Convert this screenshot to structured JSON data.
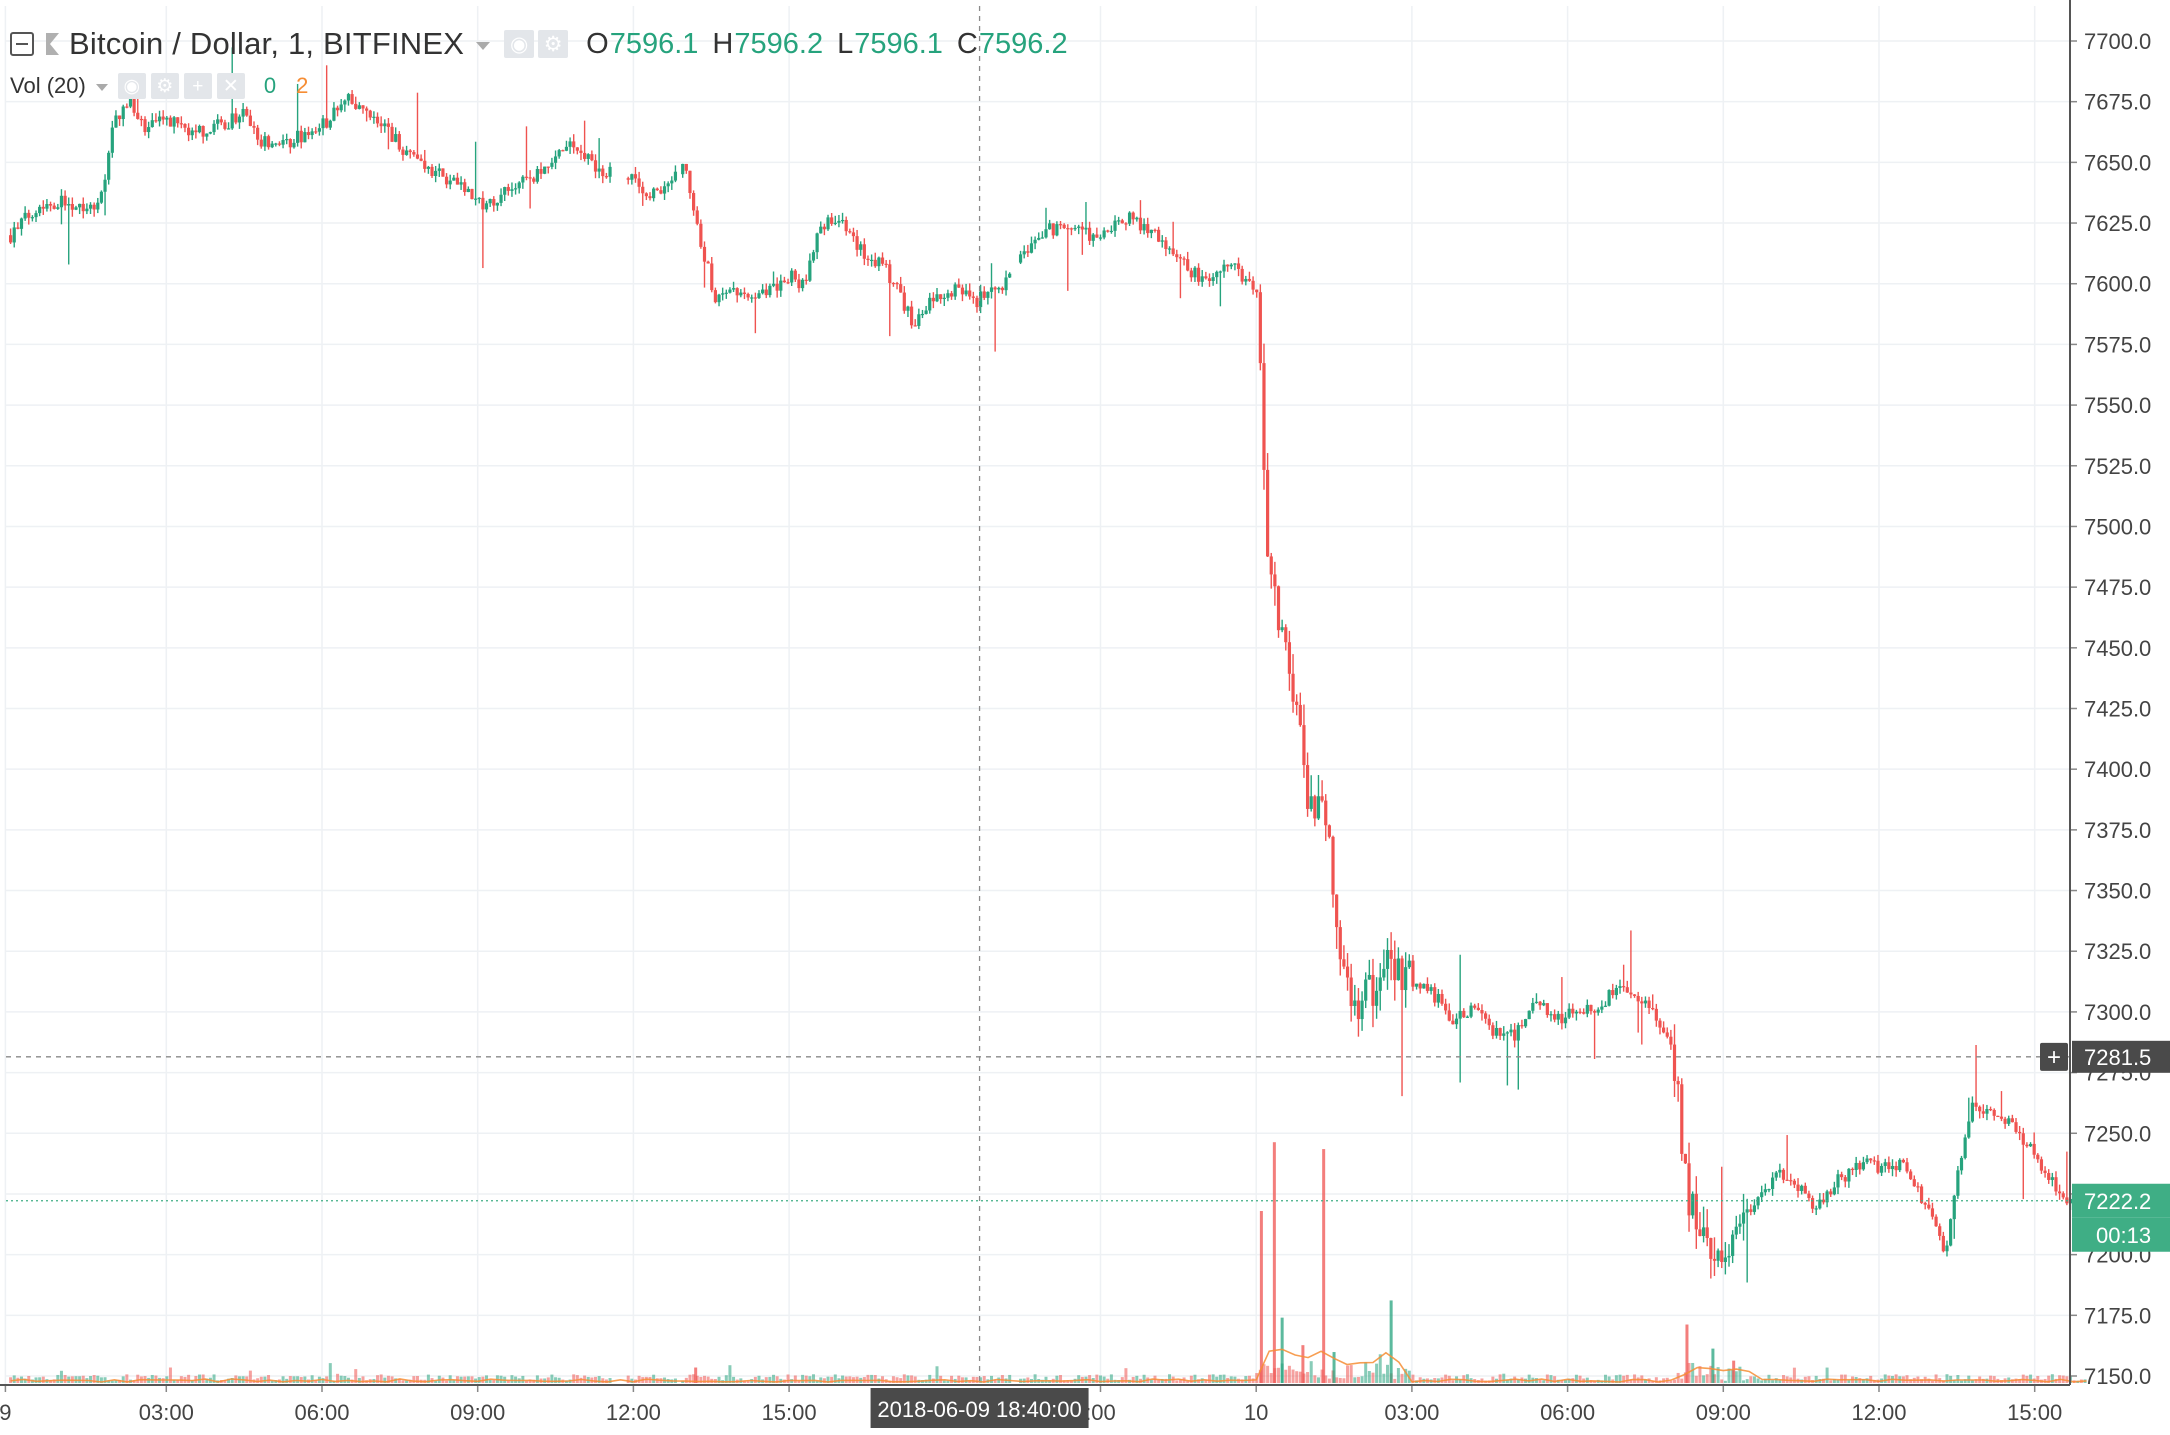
{
  "header": {
    "symbol_title": "Bitcoin / Dollar, 1, BITFINEX",
    "ohlc": [
      {
        "key": "O",
        "value": "7596.1"
      },
      {
        "key": "H",
        "value": "7596.2"
      },
      {
        "key": "L",
        "value": "7596.1"
      },
      {
        "key": "C",
        "value": "7596.2"
      }
    ],
    "volume_indicator": {
      "title": "Vol (20)",
      "up_value": "0",
      "ma_value": "2"
    }
  },
  "price_axis": {
    "ticks": [
      "7700.0",
      "7675.0",
      "7650.0",
      "7625.0",
      "7600.0",
      "7575.0",
      "7550.0",
      "7525.0",
      "7500.0",
      "7475.0",
      "7450.0",
      "7425.0",
      "7400.0",
      "7375.0",
      "7350.0",
      "7325.0",
      "7300.0",
      "7275.0",
      "7250.0",
      "7225.0",
      "7200.0",
      "7175.0",
      "7150.0"
    ],
    "crosshair_label": "7281.5",
    "crosshair_plus": "+",
    "last_price_label": "7222.2",
    "countdown_label": "00:13"
  },
  "time_axis": {
    "ticks": [
      {
        "label": "9",
        "hours": -0.1
      },
      {
        "label": "03:00",
        "hours": 3
      },
      {
        "label": "06:00",
        "hours": 6
      },
      {
        "label": "09:00",
        "hours": 9
      },
      {
        "label": "12:00",
        "hours": 12
      },
      {
        "label": "15:00",
        "hours": 15
      },
      {
        "label": ":00",
        "hours": 21
      },
      {
        "label": "10",
        "hours": 24
      },
      {
        "label": "03:00",
        "hours": 27
      },
      {
        "label": "06:00",
        "hours": 30
      },
      {
        "label": "09:00",
        "hours": 33
      },
      {
        "label": "12:00",
        "hours": 36
      },
      {
        "label": "15:00",
        "hours": 39
      }
    ],
    "crosshair_label": "2018-06-09 18:40:00"
  },
  "colors": {
    "up": "#26a37d",
    "down": "#ef5350",
    "grid": "#eef1f4",
    "axis_text": "#444444",
    "crosshair_label_bg": "#4a4a4a",
    "last_price_bg": "#3fae85",
    "volume_ma": "#f68d34"
  },
  "chart_data": {
    "type": "candlestick",
    "title": "Bitcoin / Dollar, 1, BITFINEX",
    "interval": "1 minute",
    "x_unit": "hours since 2018-06-09 00:00",
    "ylim": [
      7145,
      7705
    ],
    "xlim": [
      -0.1,
      40.1
    ],
    "grid": true,
    "crosshair": {
      "time": "2018-06-09 18:40:00",
      "price": 7281.5
    },
    "last_price": 7222.2,
    "price_path": [
      [
        0.0,
        7620
      ],
      [
        0.5,
        7632
      ],
      [
        1.0,
        7634
      ],
      [
        1.6,
        7632
      ],
      [
        1.8,
        7640
      ],
      [
        2.0,
        7668
      ],
      [
        2.3,
        7675
      ],
      [
        2.6,
        7663
      ],
      [
        3.0,
        7668
      ],
      [
        3.5,
        7662
      ],
      [
        4.0,
        7665
      ],
      [
        4.5,
        7670
      ],
      [
        4.8,
        7658
      ],
      [
        5.4,
        7659
      ],
      [
        6.0,
        7665
      ],
      [
        6.5,
        7676
      ],
      [
        6.8,
        7670
      ],
      [
        7.2,
        7665
      ],
      [
        7.6,
        7655
      ],
      [
        8.0,
        7648
      ],
      [
        8.4,
        7643
      ],
      [
        8.8,
        7638
      ],
      [
        9.2,
        7632
      ],
      [
        9.7,
        7640
      ],
      [
        10.3,
        7647
      ],
      [
        10.8,
        7657
      ],
      [
        11.3,
        7648
      ],
      [
        12.0,
        7642
      ],
      [
        12.5,
        7636
      ],
      [
        13.0,
        7648
      ],
      [
        13.3,
        7618
      ],
      [
        13.6,
        7592
      ],
      [
        14.0,
        7597
      ],
      [
        14.5,
        7595
      ],
      [
        15.0,
        7603
      ],
      [
        15.3,
        7600
      ],
      [
        15.6,
        7625
      ],
      [
        16.0,
        7626
      ],
      [
        16.4,
        7613
      ],
      [
        16.8,
        7608
      ],
      [
        17.1,
        7597
      ],
      [
        17.4,
        7584
      ],
      [
        17.8,
        7594
      ],
      [
        18.2,
        7598
      ],
      [
        18.6,
        7593
      ],
      [
        19.0,
        7597
      ],
      [
        19.5,
        7612
      ],
      [
        20.0,
        7622
      ],
      [
        20.5,
        7622
      ],
      [
        21.0,
        7618
      ],
      [
        21.5,
        7627
      ],
      [
        22.0,
        7622
      ],
      [
        22.5,
        7610
      ],
      [
        23.0,
        7600
      ],
      [
        23.5,
        7608
      ],
      [
        23.9,
        7600
      ],
      [
        24.05,
        7585
      ],
      [
        24.2,
        7480
      ],
      [
        24.5,
        7462
      ],
      [
        24.8,
        7425
      ],
      [
        25.0,
        7385
      ],
      [
        25.3,
        7392
      ],
      [
        25.6,
        7325
      ],
      [
        25.9,
        7300
      ],
      [
        26.2,
        7310
      ],
      [
        26.6,
        7322
      ],
      [
        27.0,
        7313
      ],
      [
        27.4,
        7308
      ],
      [
        27.8,
        7296
      ],
      [
        28.2,
        7302
      ],
      [
        28.6,
        7292
      ],
      [
        29.0,
        7290
      ],
      [
        29.4,
        7305
      ],
      [
        29.8,
        7297
      ],
      [
        30.2,
        7300
      ],
      [
        30.6,
        7303
      ],
      [
        31.0,
        7310
      ],
      [
        31.4,
        7305
      ],
      [
        31.9,
        7292
      ],
      [
        32.1,
        7276
      ],
      [
        32.3,
        7225
      ],
      [
        32.6,
        7210
      ],
      [
        32.9,
        7193
      ],
      [
        33.2,
        7202
      ],
      [
        33.6,
        7218
      ],
      [
        34.0,
        7234
      ],
      [
        34.4,
        7228
      ],
      [
        34.8,
        7220
      ],
      [
        35.2,
        7230
      ],
      [
        35.6,
        7238
      ],
      [
        36.0,
        7236
      ],
      [
        36.4,
        7238
      ],
      [
        36.8,
        7225
      ],
      [
        37.0,
        7218
      ],
      [
        37.3,
        7200
      ],
      [
        37.5,
        7230
      ],
      [
        37.8,
        7262
      ],
      [
        38.2,
        7258
      ],
      [
        38.6,
        7255
      ],
      [
        39.0,
        7240
      ],
      [
        39.4,
        7228
      ],
      [
        39.8,
        7220
      ],
      [
        40.0,
        7224
      ]
    ],
    "volume_spikes": [
      {
        "x": 24.1,
        "v": 100,
        "dir": "down"
      },
      {
        "x": 24.35,
        "v": 140,
        "dir": "down"
      },
      {
        "x": 24.5,
        "v": 38,
        "dir": "up"
      },
      {
        "x": 24.9,
        "v": 22,
        "dir": "down"
      },
      {
        "x": 25.3,
        "v": 136,
        "dir": "down"
      },
      {
        "x": 25.5,
        "v": 18,
        "dir": "up"
      },
      {
        "x": 26.6,
        "v": 48,
        "dir": "up"
      },
      {
        "x": 13.2,
        "v": 9,
        "dir": "down"
      },
      {
        "x": 32.3,
        "v": 34,
        "dir": "down"
      },
      {
        "x": 32.8,
        "v": 20,
        "dir": "up"
      },
      {
        "x": 33.2,
        "v": 13,
        "dir": "down"
      }
    ]
  }
}
